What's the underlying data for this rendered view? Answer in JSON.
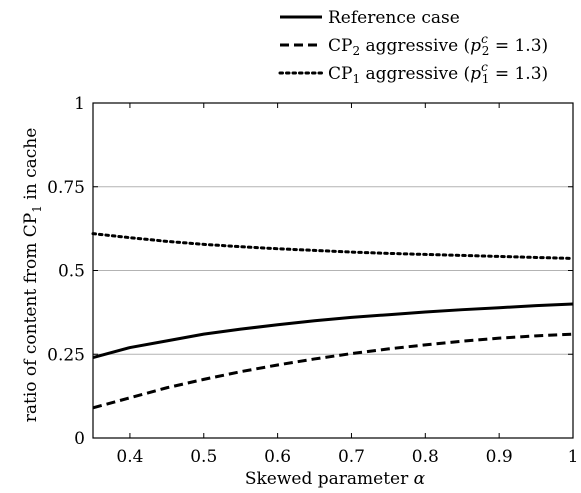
{
  "chart_data": {
    "type": "line",
    "xlabel": {
      "text": "Skewed parameter ",
      "symbol": "α"
    },
    "ylabel": {
      "prefix": "ratio of content from CP",
      "sub": "1",
      "suffix": " in cache"
    },
    "xlim": [
      0.35,
      1.0
    ],
    "ylim": [
      0,
      1
    ],
    "xticks": [
      0.4,
      0.5,
      0.6,
      0.7,
      0.8,
      0.9,
      1
    ],
    "xtick_labels": [
      "0.4",
      "0.5",
      "0.6",
      "0.7",
      "0.8",
      "0.9",
      "1"
    ],
    "yticks": [
      0,
      0.25,
      0.5,
      0.75,
      1
    ],
    "ytick_labels": [
      "0",
      "0.25",
      "0.5",
      "0.75",
      "1"
    ],
    "grid": "horizontal",
    "legend_position": "top-right, above plot",
    "x": [
      0.35,
      0.4,
      0.45,
      0.5,
      0.55,
      0.6,
      0.65,
      0.7,
      0.75,
      0.8,
      0.85,
      0.9,
      0.95,
      1.0
    ],
    "series": [
      {
        "key": "reference",
        "style": "solid",
        "legend": {
          "text": "Reference case"
        },
        "values": [
          0.24,
          0.27,
          0.29,
          0.31,
          0.325,
          0.338,
          0.35,
          0.36,
          0.368,
          0.376,
          0.383,
          0.389,
          0.395,
          0.4
        ]
      },
      {
        "key": "cp2",
        "style": "dashed",
        "legend": {
          "pre": "CP",
          "sub": "2",
          "mid": " aggressive (",
          "var": "p",
          "varsub": "2",
          "varsup": "c",
          "post": " = 1.3)"
        },
        "values": [
          0.09,
          0.12,
          0.15,
          0.175,
          0.198,
          0.218,
          0.236,
          0.252,
          0.266,
          0.278,
          0.289,
          0.298,
          0.305,
          0.31
        ]
      },
      {
        "key": "cp1",
        "style": "dotted",
        "legend": {
          "pre": "CP",
          "sub": "1",
          "mid": " aggressive (",
          "var": "p",
          "varsub": "1",
          "varsup": "c",
          "post": " = 1.3)"
        },
        "values": [
          0.61,
          0.598,
          0.587,
          0.578,
          0.571,
          0.565,
          0.56,
          0.555,
          0.551,
          0.548,
          0.545,
          0.542,
          0.539,
          0.536
        ]
      }
    ]
  }
}
